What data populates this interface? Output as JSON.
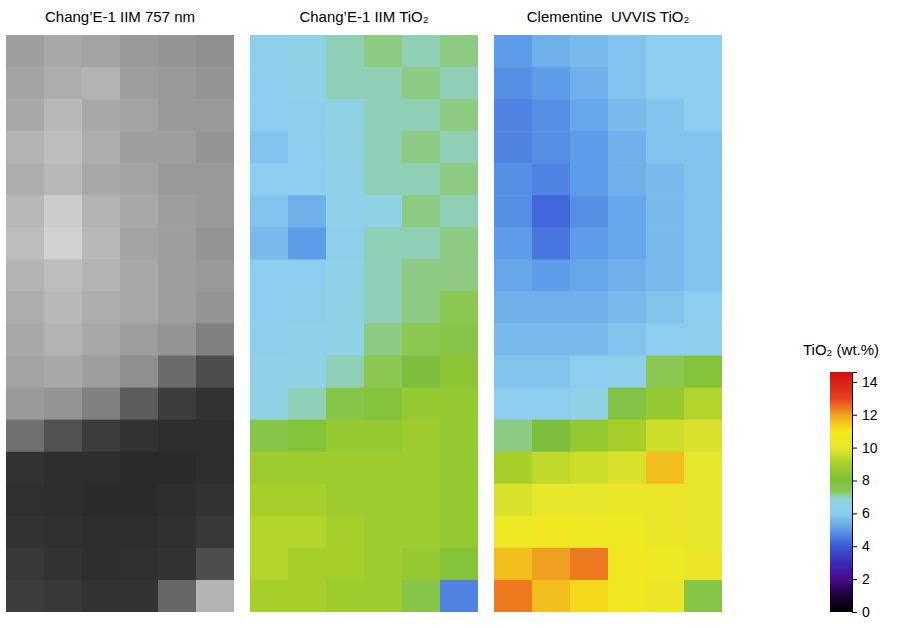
{
  "chart_data": [
    {
      "type": "heatmap",
      "title": "Chang’E-1 IIM 757 nm",
      "color": "gray",
      "zlim": [
        0,
        1
      ],
      "tick_labels": false,
      "cells": [
        [
          0.62,
          0.66,
          0.64,
          0.6,
          0.58,
          0.56
        ],
        [
          0.64,
          0.68,
          0.7,
          0.62,
          0.6,
          0.58
        ],
        [
          0.66,
          0.72,
          0.66,
          0.64,
          0.6,
          0.6
        ],
        [
          0.7,
          0.74,
          0.68,
          0.62,
          0.62,
          0.58
        ],
        [
          0.68,
          0.72,
          0.66,
          0.64,
          0.6,
          0.6
        ],
        [
          0.72,
          0.8,
          0.7,
          0.66,
          0.62,
          0.6
        ],
        [
          0.74,
          0.82,
          0.72,
          0.64,
          0.62,
          0.58
        ],
        [
          0.7,
          0.74,
          0.7,
          0.66,
          0.62,
          0.6
        ],
        [
          0.68,
          0.72,
          0.68,
          0.66,
          0.62,
          0.58
        ],
        [
          0.66,
          0.7,
          0.66,
          0.62,
          0.58,
          0.5
        ],
        [
          0.64,
          0.66,
          0.62,
          0.56,
          0.42,
          0.3
        ],
        [
          0.6,
          0.58,
          0.5,
          0.36,
          0.24,
          0.2
        ],
        [
          0.44,
          0.32,
          0.24,
          0.2,
          0.18,
          0.18
        ],
        [
          0.2,
          0.18,
          0.18,
          0.17,
          0.17,
          0.18
        ],
        [
          0.19,
          0.18,
          0.17,
          0.17,
          0.18,
          0.2
        ],
        [
          0.2,
          0.19,
          0.18,
          0.18,
          0.19,
          0.22
        ],
        [
          0.22,
          0.2,
          0.18,
          0.19,
          0.2,
          0.3
        ],
        [
          0.24,
          0.22,
          0.2,
          0.2,
          0.4,
          0.7
        ]
      ]
    },
    {
      "type": "heatmap",
      "title": "Chang’E-1 IIM TiO₂",
      "tick_labels": false,
      "cells": [
        [
          6.4,
          6.8,
          7.0,
          7.2,
          7.0,
          7.2
        ],
        [
          6.2,
          6.6,
          7.0,
          7.0,
          7.2,
          7.0
        ],
        [
          6.0,
          6.4,
          6.8,
          7.0,
          7.0,
          7.2
        ],
        [
          5.8,
          6.2,
          6.8,
          7.0,
          7.2,
          7.0
        ],
        [
          6.0,
          6.2,
          6.6,
          7.0,
          7.0,
          7.2
        ],
        [
          5.8,
          5.4,
          6.6,
          6.8,
          7.2,
          7.0
        ],
        [
          5.6,
          5.0,
          6.4,
          7.0,
          7.0,
          7.2
        ],
        [
          6.0,
          6.0,
          6.6,
          7.0,
          7.2,
          7.2
        ],
        [
          6.2,
          6.4,
          6.8,
          7.0,
          7.2,
          7.4
        ],
        [
          6.4,
          6.6,
          6.8,
          7.2,
          7.4,
          7.6
        ],
        [
          6.6,
          6.8,
          7.0,
          7.4,
          8.0,
          8.4
        ],
        [
          6.8,
          7.0,
          7.6,
          8.2,
          8.6,
          8.6
        ],
        [
          7.6,
          8.2,
          8.6,
          8.6,
          8.8,
          8.6
        ],
        [
          8.8,
          8.8,
          8.8,
          8.8,
          8.8,
          8.6
        ],
        [
          9.0,
          9.0,
          8.8,
          8.8,
          8.8,
          8.6
        ],
        [
          9.2,
          9.2,
          9.0,
          8.8,
          8.8,
          8.6
        ],
        [
          9.2,
          9.0,
          9.0,
          8.8,
          8.6,
          8.2
        ],
        [
          9.0,
          9.0,
          8.8,
          8.8,
          7.6,
          4.6
        ]
      ]
    },
    {
      "type": "heatmap",
      "title": "Clementine  UVVIS TiO₂",
      "tick_labels": false,
      "cells": [
        [
          5.0,
          5.4,
          5.6,
          5.8,
          6.0,
          6.0
        ],
        [
          4.8,
          5.0,
          5.4,
          5.8,
          6.0,
          6.0
        ],
        [
          4.6,
          4.8,
          5.2,
          5.6,
          5.8,
          6.0
        ],
        [
          4.6,
          4.8,
          5.0,
          5.4,
          5.8,
          5.8
        ],
        [
          4.8,
          4.6,
          5.0,
          5.4,
          5.6,
          5.8
        ],
        [
          4.8,
          4.2,
          4.8,
          5.2,
          5.6,
          5.8
        ],
        [
          5.0,
          4.4,
          5.0,
          5.2,
          5.6,
          5.8
        ],
        [
          5.2,
          5.0,
          5.2,
          5.4,
          5.6,
          5.8
        ],
        [
          5.4,
          5.4,
          5.4,
          5.6,
          5.8,
          6.0
        ],
        [
          5.6,
          5.6,
          5.6,
          5.8,
          6.0,
          6.4
        ],
        [
          5.8,
          5.8,
          6.0,
          6.4,
          7.4,
          8.2
        ],
        [
          6.0,
          6.2,
          6.8,
          7.8,
          8.6,
          9.2
        ],
        [
          7.2,
          8.0,
          8.6,
          9.0,
          9.6,
          9.8
        ],
        [
          9.0,
          9.4,
          9.6,
          9.8,
          11.6,
          10.0
        ],
        [
          9.8,
          10.0,
          10.0,
          10.2,
          10.2,
          10.0
        ],
        [
          10.4,
          10.6,
          10.4,
          10.4,
          10.2,
          10.0
        ],
        [
          11.6,
          12.0,
          12.4,
          10.6,
          10.4,
          10.2
        ],
        [
          12.4,
          11.6,
          11.2,
          10.6,
          10.2,
          7.6
        ]
      ],
      "colorbar": {
        "label": "TiO₂ (wt.%)",
        "range": [
          0,
          14.6
        ],
        "ticks": [
          0,
          2,
          4,
          6,
          8,
          10,
          12,
          14
        ]
      }
    }
  ]
}
